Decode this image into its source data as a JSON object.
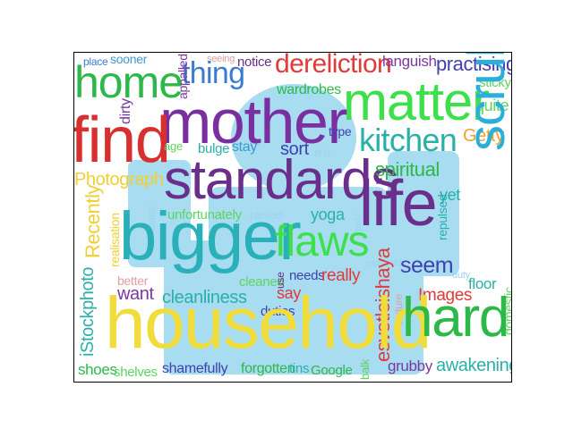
{
  "words": [
    {
      "text": "place",
      "color": "#3b7bd4"
    },
    {
      "text": "sooner",
      "color": "#3b9bd4"
    },
    {
      "text": "seeing",
      "color": "#e0a0a0"
    },
    {
      "text": "notice",
      "color": "#6a2f8a"
    },
    {
      "text": "dereliction",
      "color": "#e03a3a"
    },
    {
      "text": "languish",
      "color": "#7a3aa0"
    },
    {
      "text": "practising",
      "color": "#4040b0"
    },
    {
      "text": "home",
      "color": "#2db84a"
    },
    {
      "text": "thing",
      "color": "#3b7bd4"
    },
    {
      "text": "appalled",
      "color": "#7a3aa0"
    },
    {
      "text": "wardrobes",
      "color": "#2db84a"
    },
    {
      "text": "sticky",
      "color": "#5ed460"
    },
    {
      "text": "mother",
      "color": "#7a2fa0"
    },
    {
      "text": "matter",
      "color": "#3de04a"
    },
    {
      "text": "quite",
      "color": "#5ed460"
    },
    {
      "text": "dirty",
      "color": "#7a3aa0"
    },
    {
      "text": "find",
      "color": "#d83030"
    },
    {
      "text": "type",
      "color": "#4040b0"
    },
    {
      "text": "kitchen",
      "color": "#2ab0a8"
    },
    {
      "text": "Getty",
      "color": "#f0a030"
    },
    {
      "text": "age",
      "color": "#5ed460"
    },
    {
      "text": "bulge",
      "color": "#2ab0a8"
    },
    {
      "text": "stay",
      "color": "#3b9bd4"
    },
    {
      "text": "sort",
      "color": "#4040b0"
    },
    {
      "text": "first",
      "color": "#9ad4f0"
    },
    {
      "text": "Photograph",
      "color": "#f0d030"
    },
    {
      "text": "standards",
      "color": "#6a2f8a"
    },
    {
      "text": "spiritual",
      "color": "#2db84a"
    },
    {
      "text": "scrub",
      "color": "#2ab0d8"
    },
    {
      "text": "yet",
      "color": "#2ab0a8"
    },
    {
      "text": "life",
      "color": "#6a2f8a"
    },
    {
      "text": "dates",
      "color": "#9ad4f0"
    },
    {
      "text": "Recently",
      "color": "#f0d030"
    },
    {
      "text": "unfortunately",
      "color": "#5ed460"
    },
    {
      "text": "raised",
      "color": "#9ad4f0"
    },
    {
      "text": "yoga",
      "color": "#2ab0a8"
    },
    {
      "text": "past",
      "color": "#9ad4f0"
    },
    {
      "text": "repulsed",
      "color": "#2ab0a8"
    },
    {
      "text": "realisation",
      "color": "#f0d030"
    },
    {
      "text": "bigger",
      "color": "#2ab0b8"
    },
    {
      "text": "flaws",
      "color": "#3de04a"
    },
    {
      "text": "evolved",
      "color": "#9ad4f0"
    },
    {
      "text": "seem",
      "color": "#4040b0"
    },
    {
      "text": "iStockphoto",
      "color": "#2ab0a8"
    },
    {
      "text": "better",
      "color": "#e0a0a0"
    },
    {
      "text": "cleaned",
      "color": "#5ed460"
    },
    {
      "text": "use",
      "color": "#6a2f8a"
    },
    {
      "text": "needs",
      "color": "#4040b0"
    },
    {
      "text": "really",
      "color": "#e03a3a"
    },
    {
      "text": "esvetleishaya",
      "color": "#e03a3a"
    },
    {
      "text": "duty",
      "color": "#9ad4f0"
    },
    {
      "text": "floor",
      "color": "#2ab0a8"
    },
    {
      "text": "want",
      "color": "#7a3aa0"
    },
    {
      "text": "cleanliness",
      "color": "#2ab0a8"
    },
    {
      "text": "say",
      "color": "#e03a3a"
    },
    {
      "text": "Images",
      "color": "#e03a3a"
    },
    {
      "text": "duties",
      "color": "#4040b0"
    },
    {
      "text": "texture",
      "color": "#e0a0a0"
    },
    {
      "text": "domestic",
      "color": "#5ed460"
    },
    {
      "text": "household",
      "color": "#f0dc3a"
    },
    {
      "text": "hard",
      "color": "#2db84a"
    },
    {
      "text": "shoes",
      "color": "#2db84a"
    },
    {
      "text": "shelves",
      "color": "#5ed460"
    },
    {
      "text": "shamefully",
      "color": "#4040b0"
    },
    {
      "text": "forgotten",
      "color": "#2db84a"
    },
    {
      "text": "tins",
      "color": "#2ab0a8"
    },
    {
      "text": "Google",
      "color": "#2db84a"
    },
    {
      "text": "balk",
      "color": "#5ed460"
    },
    {
      "text": "grubby",
      "color": "#7a3aa0"
    },
    {
      "text": "awakening",
      "color": "#2ab0a8"
    }
  ],
  "silhouette_color": "#a8dcf0"
}
